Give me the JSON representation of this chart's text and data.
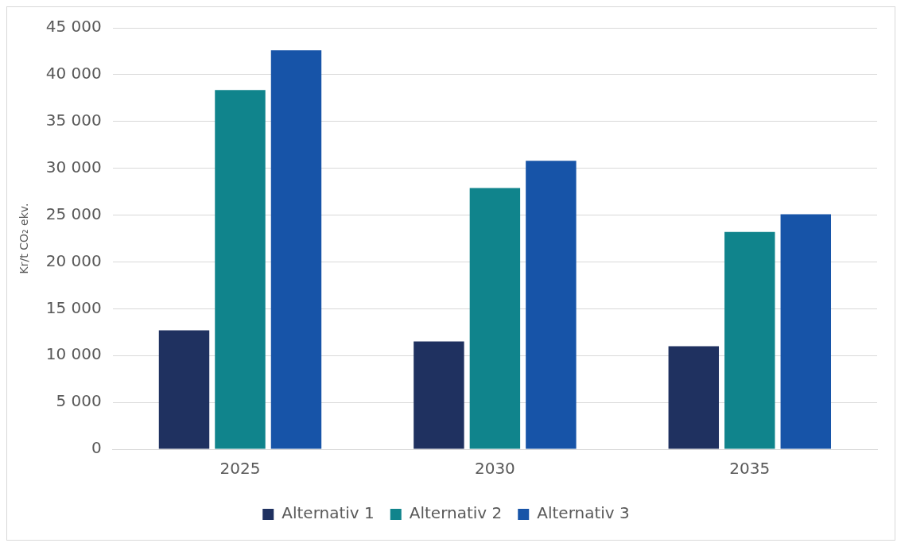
{
  "chart_data": {
    "type": "bar",
    "ylabel": "Kr/t CO₂ ekv.",
    "categories": [
      "2025",
      "2030",
      "2035"
    ],
    "series": [
      {
        "name": "Alternativ 1",
        "color": "#1f3160",
        "values": [
          12700,
          11500,
          11000
        ]
      },
      {
        "name": "Alternativ 2",
        "color": "#10848c",
        "values": [
          38350,
          27900,
          23200
        ]
      },
      {
        "name": "Alternativ 3",
        "color": "#1754a8",
        "values": [
          42600,
          30800,
          25100
        ]
      }
    ],
    "ylim": [
      0,
      45000
    ],
    "yticks": [
      {
        "value": 0,
        "label": "0"
      },
      {
        "value": 5000,
        "label": "5 000"
      },
      {
        "value": 10000,
        "label": "10 000"
      },
      {
        "value": 15000,
        "label": "15 000"
      },
      {
        "value": 20000,
        "label": "20 000"
      },
      {
        "value": 25000,
        "label": "25 000"
      },
      {
        "value": 30000,
        "label": "30 000"
      },
      {
        "value": 35000,
        "label": "35 000"
      },
      {
        "value": 40000,
        "label": "40 000"
      },
      {
        "value": 45000,
        "label": "45 000"
      }
    ],
    "grid": "y",
    "legend": "bottom"
  }
}
